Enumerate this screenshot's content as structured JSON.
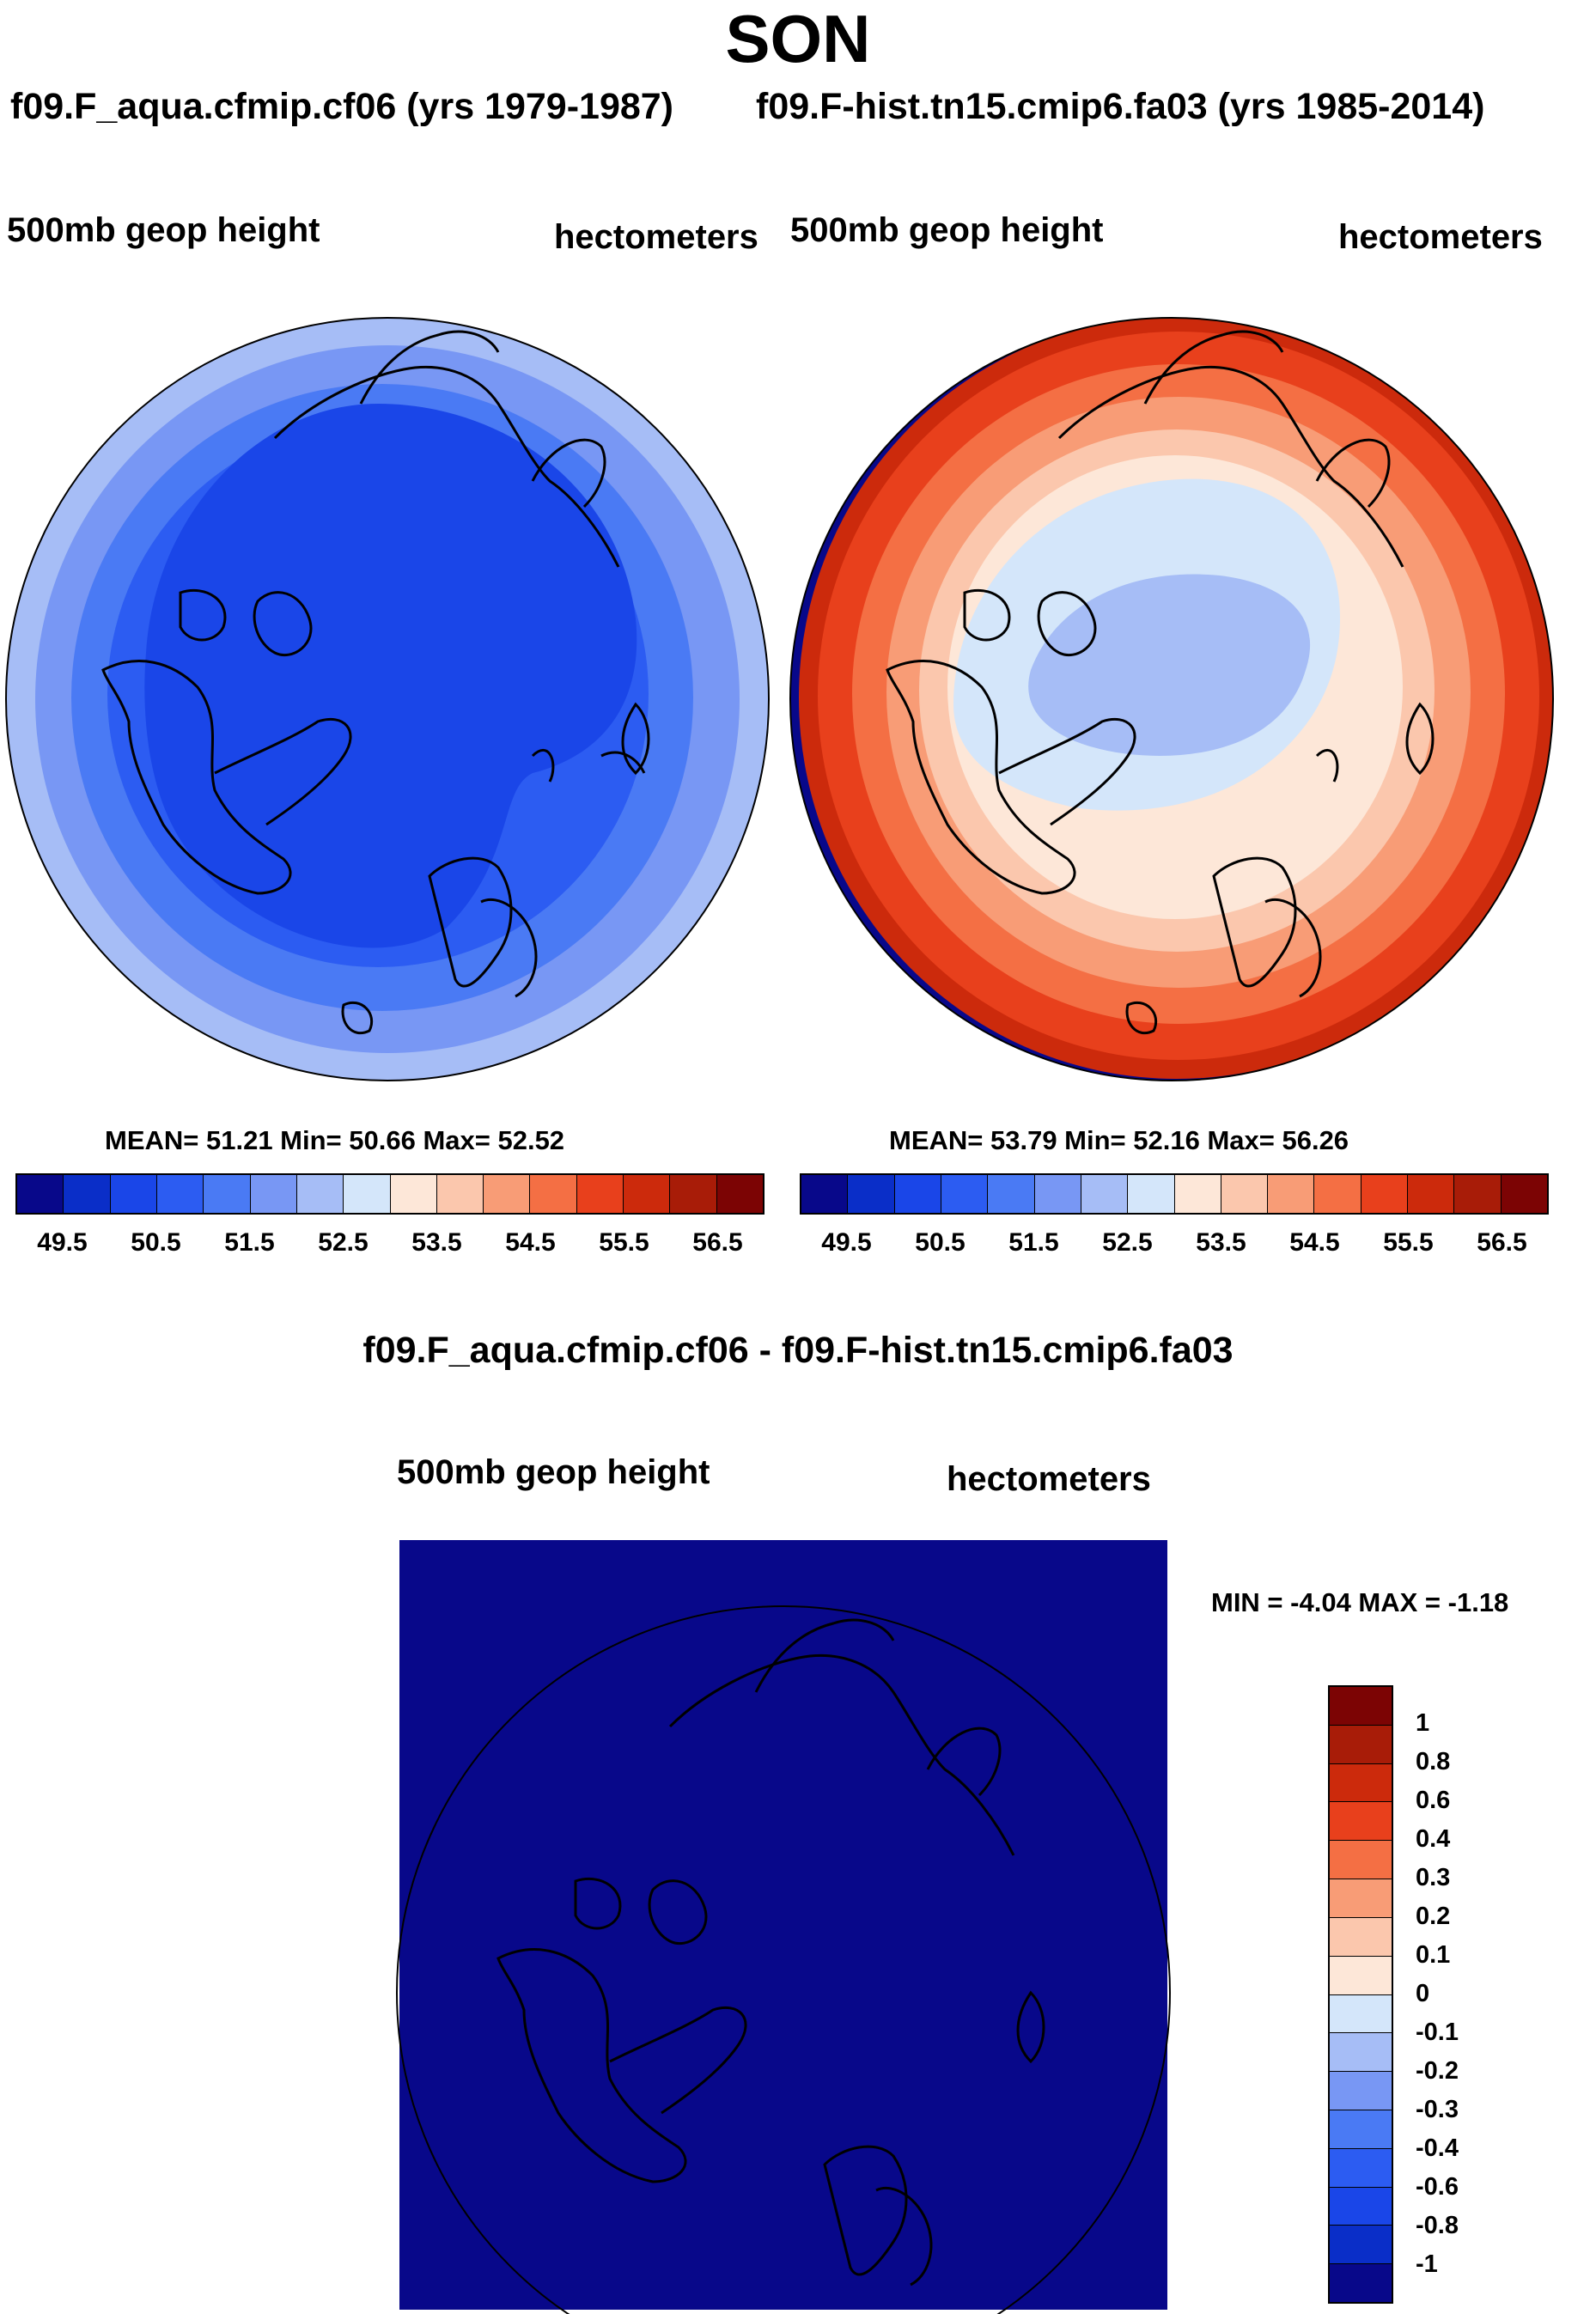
{
  "title": "SON",
  "panels": [
    {
      "case": "f09.F_aqua.cfmip.cf06 (yrs 1979-1987)",
      "variable": "500mb geop height",
      "units": "hectometers",
      "stats": {
        "mean": "51.21",
        "min": "50.66",
        "max": "52.52"
      },
      "stats_text": "MEAN=  51.21   Min=  50.66   Max=  52.52"
    },
    {
      "case": "f09.F-hist.tn15.cmip6.fa03 (yrs 1985-2014)",
      "variable": "500mb geop height",
      "units": "hectometers",
      "stats": {
        "mean": "53.79",
        "min": "52.16",
        "max": "56.26"
      },
      "stats_text": "MEAN=  53.79   Min=  52.16   Max=  56.26"
    },
    {
      "case": "f09.F_aqua.cfmip.cf06 - f09.F-hist.tn15.cmip6.fa03",
      "variable": "500mb geop height",
      "units": "hectometers",
      "stats": {
        "min": "-4.04",
        "max": "-1.18"
      },
      "stats_text": "MIN =  -4.04  MAX =  -1.18"
    }
  ],
  "chart_data": [
    {
      "type": "heatmap",
      "subtype": "polar-stereographic contour map (North Pole)",
      "title": "f09.F_aqua.cfmip.cf06 (yrs 1979-1987)",
      "field": "500mb geop height",
      "units": "hectometers",
      "mean": 51.21,
      "min": 50.66,
      "max": 52.52,
      "colorbar_levels": [
        49.5,
        50,
        50.5,
        51,
        51.5,
        52,
        52.5,
        53,
        53.5,
        54,
        54.5,
        55,
        55.5,
        56,
        56.5
      ],
      "colorbar_tick_labels": [
        "49.5",
        "50.5",
        "51.5",
        "52.5",
        "53.5",
        "54.5",
        "55.5",
        "56.5"
      ]
    },
    {
      "type": "heatmap",
      "subtype": "polar-stereographic contour map (North Pole)",
      "title": "f09.F-hist.tn15.cmip6.fa03 (yrs 1985-2014)",
      "field": "500mb geop height",
      "units": "hectometers",
      "mean": 53.79,
      "min": 52.16,
      "max": 56.26,
      "colorbar_levels": [
        49.5,
        50,
        50.5,
        51,
        51.5,
        52,
        52.5,
        53,
        53.5,
        54,
        54.5,
        55,
        55.5,
        56,
        56.5
      ],
      "colorbar_tick_labels": [
        "49.5",
        "50.5",
        "51.5",
        "52.5",
        "53.5",
        "54.5",
        "55.5",
        "56.5"
      ]
    },
    {
      "type": "heatmap",
      "subtype": "difference map (North Pole)",
      "title": "f09.F_aqua.cfmip.cf06 - f09.F-hist.tn15.cmip6.fa03",
      "field": "500mb geop height",
      "units": "hectometers",
      "min": -4.04,
      "max": -1.18,
      "colorbar_tick_labels": [
        "1",
        "0.8",
        "0.6",
        "0.4",
        "0.3",
        "0.2",
        "0.1",
        "0",
        "-0.1",
        "-0.2",
        "-0.3",
        "-0.4",
        "-0.6",
        "-0.8",
        "-1"
      ]
    }
  ],
  "colors": {
    "scale": [
      "#08088a",
      "#0a2ec8",
      "#1a46e8",
      "#2c5cf2",
      "#4a7af4",
      "#7897f4",
      "#a6bdf6",
      "#d4e6fa",
      "#fde7d8",
      "#fbc7ad",
      "#f89c76",
      "#f46f44",
      "#e8401c",
      "#cc2a0c",
      "#a81c08",
      "#7c0404"
    ],
    "diff_fill": "#08088a"
  },
  "hcolorbar": {
    "colors": [
      "#08088a",
      "#0a2ec8",
      "#1a46e8",
      "#2c5cf2",
      "#4a7af4",
      "#7897f4",
      "#a6bdf6",
      "#d4e6fa",
      "#fde7d8",
      "#fbc7ad",
      "#f89c76",
      "#f46f44",
      "#e8401c",
      "#cc2a0c",
      "#a81c08",
      "#7c0404"
    ],
    "labels": [
      "49.5",
      "50.5",
      "51.5",
      "52.5",
      "53.5",
      "54.5",
      "55.5",
      "56.5"
    ]
  },
  "vcolorbar": {
    "colors": [
      "#7c0404",
      "#a81c08",
      "#cc2a0c",
      "#e8401c",
      "#f46f44",
      "#f89c76",
      "#fbc7ad",
      "#fde7d8",
      "#d4e6fa",
      "#a6bdf6",
      "#7897f4",
      "#4a7af4",
      "#2c5cf2",
      "#1a46e8",
      "#0a2ec8",
      "#08088a"
    ],
    "labels": [
      "1",
      "0.8",
      "0.6",
      "0.4",
      "0.3",
      "0.2",
      "0.1",
      "0",
      "-0.1",
      "-0.2",
      "-0.3",
      "-0.4",
      "-0.6",
      "-0.8",
      "-1"
    ]
  }
}
